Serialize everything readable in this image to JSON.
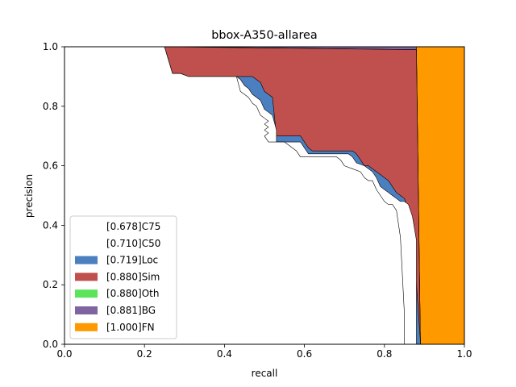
{
  "chart_data": {
    "type": "area",
    "title": "bbox-A350-allarea",
    "xlabel": "recall",
    "ylabel": "precision",
    "xlim": [
      0,
      1
    ],
    "ylim": [
      0,
      1
    ],
    "xticks": [
      "0.0",
      "0.2",
      "0.4",
      "0.6",
      "0.8",
      "1.0"
    ],
    "yticks": [
      "0.0",
      "0.2",
      "0.4",
      "0.6",
      "0.8",
      "1.0"
    ],
    "grid": false,
    "legend_position": "lower-left",
    "series": [
      {
        "name": "[0.678]C75",
        "color": "#ffffff",
        "x": [
          0,
          0.25,
          0.27,
          0.29,
          0.31,
          0.43,
          0.44,
          0.46,
          0.47,
          0.48,
          0.49,
          0.5,
          0.51,
          0.5,
          0.51,
          0.5,
          0.51,
          0.5,
          0.51,
          0.55,
          0.56,
          0.57,
          0.58,
          0.59,
          0.6,
          0.62,
          0.68,
          0.69,
          0.7,
          0.72,
          0.74,
          0.75,
          0.76,
          0.77,
          0.78,
          0.79,
          0.8,
          0.81,
          0.82,
          0.83,
          0.84,
          0.85,
          0.85
        ],
        "y": [
          1.0,
          1.0,
          0.91,
          0.91,
          0.9,
          0.9,
          0.85,
          0.83,
          0.81,
          0.8,
          0.77,
          0.76,
          0.75,
          0.74,
          0.73,
          0.72,
          0.71,
          0.7,
          0.68,
          0.68,
          0.67,
          0.66,
          0.65,
          0.63,
          0.63,
          0.63,
          0.63,
          0.62,
          0.6,
          0.59,
          0.58,
          0.56,
          0.55,
          0.55,
          0.52,
          0.5,
          0.48,
          0.47,
          0.47,
          0.45,
          0.36,
          0.1,
          0.0
        ]
      },
      {
        "name": "[0.710]C50",
        "color": "#ffffff",
        "x": [
          0,
          0.25,
          0.27,
          0.29,
          0.31,
          0.43,
          0.44,
          0.45,
          0.46,
          0.47,
          0.48,
          0.49,
          0.5,
          0.51,
          0.52,
          0.53,
          0.53,
          0.59,
          0.6,
          0.61,
          0.62,
          0.71,
          0.72,
          0.73,
          0.75,
          0.76,
          0.77,
          0.78,
          0.79,
          0.8,
          0.81,
          0.82,
          0.83,
          0.84,
          0.85,
          0.86,
          0.87,
          0.88,
          0.88
        ],
        "y": [
          1.0,
          1.0,
          0.91,
          0.91,
          0.9,
          0.9,
          0.89,
          0.87,
          0.86,
          0.84,
          0.83,
          0.82,
          0.79,
          0.78,
          0.77,
          0.72,
          0.68,
          0.68,
          0.66,
          0.64,
          0.64,
          0.64,
          0.63,
          0.61,
          0.6,
          0.59,
          0.58,
          0.56,
          0.53,
          0.52,
          0.51,
          0.5,
          0.49,
          0.48,
          0.48,
          0.47,
          0.43,
          0.35,
          0.0
        ]
      },
      {
        "name": "[0.719]Loc",
        "color": "#4c7fbf",
        "x": [
          0,
          0.25,
          0.27,
          0.29,
          0.31,
          0.43,
          0.45,
          0.47,
          0.48,
          0.49,
          0.5,
          0.52,
          0.53,
          0.59,
          0.6,
          0.61,
          0.62,
          0.72,
          0.73,
          0.74,
          0.75,
          0.76,
          0.77,
          0.78,
          0.79,
          0.8,
          0.81,
          0.82,
          0.83,
          0.84,
          0.85,
          0.86,
          0.87,
          0.88,
          0.89,
          0.89
        ],
        "y": [
          1.0,
          1.0,
          0.91,
          0.91,
          0.9,
          0.9,
          0.9,
          0.9,
          0.89,
          0.88,
          0.85,
          0.83,
          0.7,
          0.7,
          0.68,
          0.66,
          0.65,
          0.65,
          0.64,
          0.62,
          0.6,
          0.6,
          0.59,
          0.58,
          0.57,
          0.56,
          0.55,
          0.53,
          0.51,
          0.5,
          0.49,
          0.45,
          0.4,
          0.2,
          0.01,
          0.0
        ]
      },
      {
        "name": "[0.880]Sim",
        "color": "#c0504d",
        "x": [
          0,
          0.25,
          0.88,
          0.88,
          0.89
        ],
        "y": [
          1.0,
          1.0,
          0.99,
          0.99,
          0.0
        ]
      },
      {
        "name": "[0.880]Oth",
        "color": "#5be35b",
        "x": [
          0,
          0.25,
          0.88,
          0.88,
          0.89
        ],
        "y": [
          1.0,
          1.0,
          0.99,
          0.99,
          0.0
        ]
      },
      {
        "name": "[0.881]BG",
        "color": "#8064a2",
        "x": [
          0,
          0.88,
          0.89
        ],
        "y": [
          1.0,
          1.0,
          0.0
        ]
      },
      {
        "name": "[1.000]FN",
        "color": "#ff9900",
        "x": [
          0,
          1.0,
          1.0
        ],
        "y": [
          1.0,
          1.0,
          0.0
        ]
      }
    ]
  }
}
